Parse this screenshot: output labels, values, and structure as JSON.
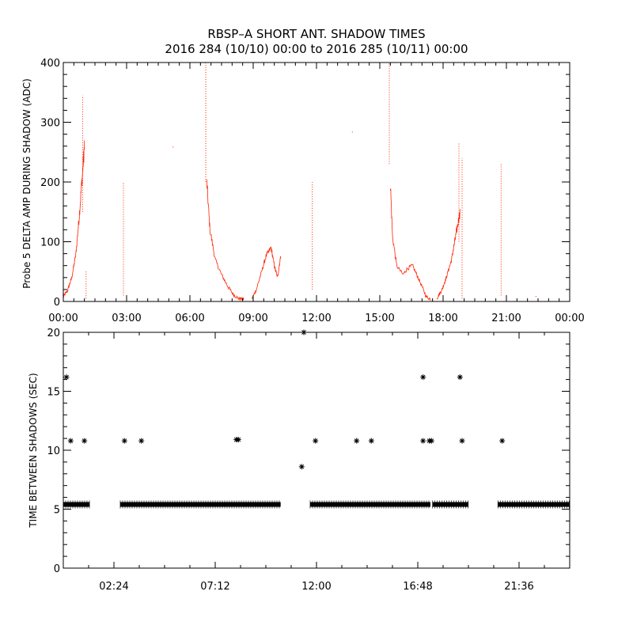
{
  "title_line1": "RBSP–A SHORT ANT. SHADOW TIMES",
  "title_line2": "2016 284 (10/10) 00:00 to 2016 285 (10/11) 00:00",
  "chart_data": [
    {
      "type": "scatter",
      "ylabel": "Probe 5 DELTA AMP DURING SHADOW (ADC)",
      "xlim_hours": [
        0,
        24
      ],
      "ylim": [
        0,
        400
      ],
      "x_ticks": [
        "00:00",
        "03:00",
        "06:00",
        "09:00",
        "12:00",
        "15:00",
        "18:00",
        "21:00",
        "00:00"
      ],
      "y_ticks": [
        0,
        100,
        200,
        300,
        400
      ],
      "color": "#ff2200",
      "spikes": [
        {
          "t": 0.92,
          "lo": 150,
          "hi": 345
        },
        {
          "t": 1.08,
          "lo": 5,
          "hi": 50
        },
        {
          "t": 2.85,
          "lo": 10,
          "hi": 200
        },
        {
          "t": 5.2,
          "lo": 258,
          "hi": 262
        },
        {
          "t": 6.75,
          "lo": 200,
          "hi": 400
        },
        {
          "t": 11.8,
          "lo": 20,
          "hi": 200
        },
        {
          "t": 13.7,
          "lo": 283,
          "hi": 287
        },
        {
          "t": 15.45,
          "lo": 230,
          "hi": 400
        },
        {
          "t": 18.75,
          "lo": 100,
          "hi": 265
        },
        {
          "t": 18.9,
          "lo": 5,
          "hi": 240
        },
        {
          "t": 20.75,
          "lo": 10,
          "hi": 230
        },
        {
          "t": 22.4,
          "lo": 8,
          "hi": 12
        }
      ],
      "curves": [
        {
          "pts": [
            [
              0.0,
              8
            ],
            [
              0.2,
              18
            ],
            [
              0.4,
              40
            ],
            [
              0.6,
              80
            ],
            [
              0.75,
              140
            ],
            [
              0.9,
              210
            ],
            [
              1.0,
              260
            ]
          ]
        },
        {
          "pts": [
            [
              6.8,
              200
            ],
            [
              6.95,
              120
            ],
            [
              7.2,
              70
            ],
            [
              7.5,
              45
            ],
            [
              7.8,
              25
            ],
            [
              8.05,
              12
            ],
            [
              8.3,
              5
            ],
            [
              8.55,
              4
            ]
          ]
        },
        {
          "pts": [
            [
              8.95,
              5
            ],
            [
              9.15,
              20
            ],
            [
              9.4,
              50
            ],
            [
              9.6,
              75
            ],
            [
              9.85,
              90
            ],
            [
              10.0,
              60
            ],
            [
              10.15,
              40
            ],
            [
              10.3,
              75
            ]
          ]
        },
        {
          "pts": [
            [
              15.5,
              200
            ],
            [
              15.6,
              110
            ],
            [
              15.8,
              60
            ],
            [
              16.1,
              45
            ],
            [
              16.3,
              55
            ],
            [
              16.55,
              60
            ],
            [
              16.75,
              45
            ],
            [
              17.0,
              25
            ],
            [
              17.2,
              8
            ],
            [
              17.4,
              4
            ]
          ]
        },
        {
          "pts": [
            [
              17.7,
              5
            ],
            [
              17.95,
              20
            ],
            [
              18.15,
              40
            ],
            [
              18.4,
              70
            ],
            [
              18.6,
              110
            ],
            [
              18.8,
              150
            ]
          ]
        }
      ]
    },
    {
      "type": "scatter",
      "ylabel": "TIME BETWEEN SHADOWS (SEC)",
      "xlim_hours": [
        0,
        24
      ],
      "ylim": [
        0,
        20
      ],
      "x_ticks": [
        "02:24",
        "07:12",
        "12:00",
        "16:48",
        "21:36"
      ],
      "y_ticks": [
        0,
        5,
        10,
        15,
        20
      ],
      "marker": "*",
      "baseline_value": 5.4,
      "baseline_segments": [
        [
          0.0,
          1.25
        ],
        [
          2.7,
          10.3
        ],
        [
          11.7,
          17.4
        ],
        [
          17.5,
          19.2
        ],
        [
          20.6,
          24.0
        ]
      ],
      "points": [
        {
          "t": 0.15,
          "v": 16.2
        },
        {
          "t": 0.35,
          "v": 10.8
        },
        {
          "t": 1.0,
          "v": 10.8
        },
        {
          "t": 2.9,
          "v": 10.8
        },
        {
          "t": 3.7,
          "v": 10.8
        },
        {
          "t": 8.2,
          "v": 10.9
        },
        {
          "t": 8.3,
          "v": 10.9
        },
        {
          "t": 11.4,
          "v": 20.0
        },
        {
          "t": 11.3,
          "v": 8.6
        },
        {
          "t": 11.95,
          "v": 10.8
        },
        {
          "t": 13.9,
          "v": 10.8
        },
        {
          "t": 14.6,
          "v": 10.8
        },
        {
          "t": 17.05,
          "v": 16.2
        },
        {
          "t": 17.05,
          "v": 10.8
        },
        {
          "t": 17.35,
          "v": 10.8
        },
        {
          "t": 17.45,
          "v": 10.8
        },
        {
          "t": 18.8,
          "v": 16.2
        },
        {
          "t": 18.9,
          "v": 10.8
        },
        {
          "t": 20.8,
          "v": 10.8
        }
      ]
    }
  ]
}
